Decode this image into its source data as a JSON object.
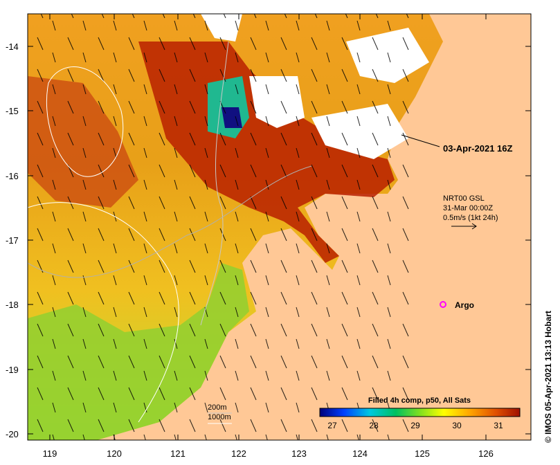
{
  "map": {
    "title_timestamp": "03-Apr-2021 16Z",
    "lat_ticks": [
      "-14",
      "-15",
      "-16",
      "-17",
      "-18",
      "-19",
      "-20"
    ],
    "lon_ticks": [
      "119",
      "120",
      "121",
      "122",
      "123",
      "124",
      "125",
      "126"
    ],
    "current_info": {
      "line1": "NRT00 GSL",
      "line2": "31-Mar 00:00Z",
      "line3": "0.5m/s (1kt 24h)"
    },
    "argo_label": "Argo",
    "contour_legend": {
      "line1": "200m",
      "line2": "1000m"
    },
    "colorbar": {
      "title": "Filled 4h comp, p50, All Sats",
      "ticks": [
        "27",
        "28",
        "29",
        "30",
        "31"
      ],
      "colors": [
        "#00007a",
        "#0040ff",
        "#00c8e0",
        "#00c060",
        "#80e020",
        "#ffff00",
        "#ffa500",
        "#e05000",
        "#a01000"
      ]
    },
    "credit": "© IMOS 05-Apr-2021 13:13 Hobart",
    "colors": {
      "land": "#ffc896",
      "cloud": "#ffffff",
      "argo": "#ff00ff"
    }
  }
}
